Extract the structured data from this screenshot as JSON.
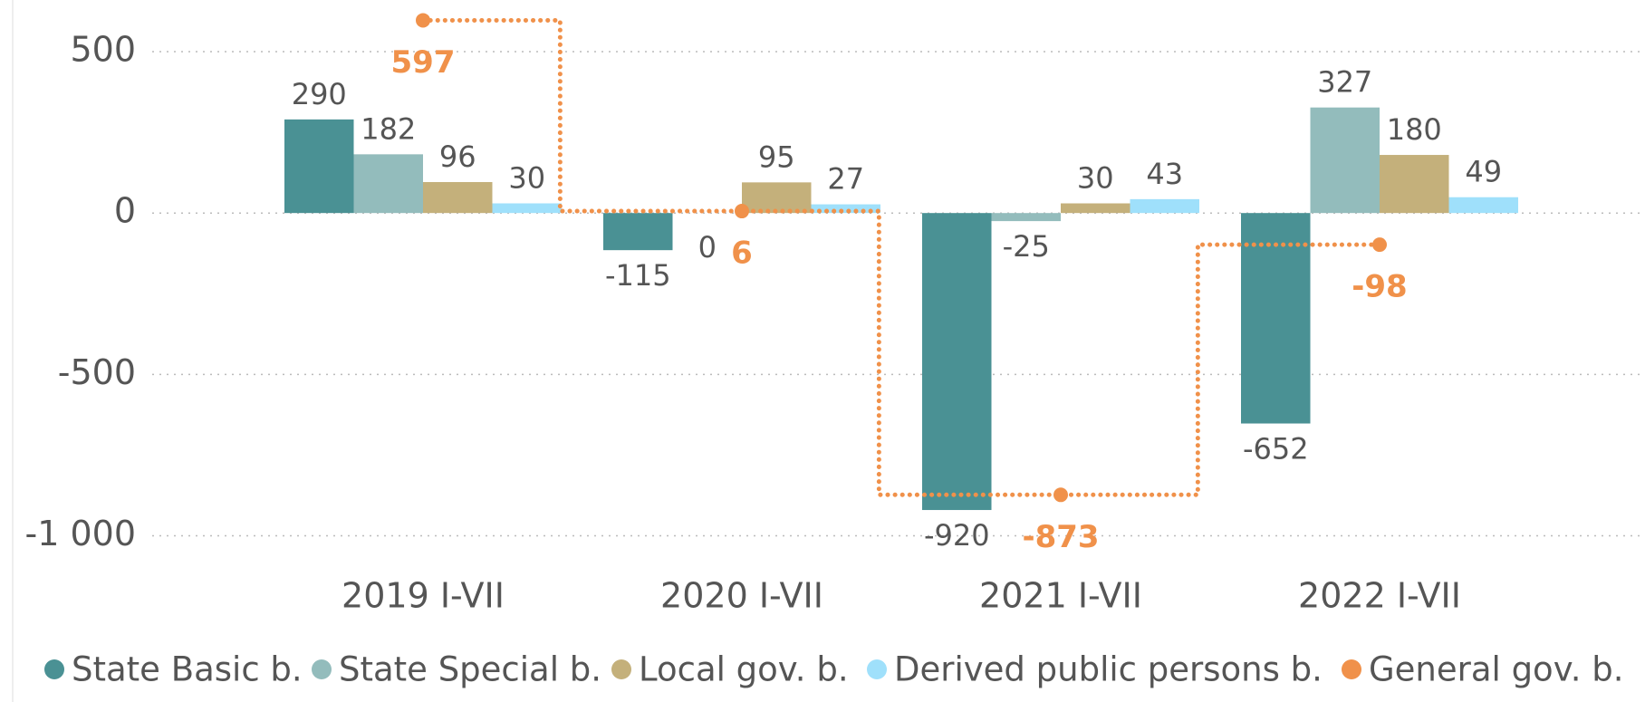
{
  "chart_data": {
    "type": "bar",
    "categories": [
      "2019 I-VII",
      "2020 I-VII",
      "2021 I-VII",
      "2022 I-VII"
    ],
    "series": [
      {
        "name": "State Basic b.",
        "color": "#4a9194",
        "values": [
          290,
          -115,
          -920,
          -652
        ]
      },
      {
        "name": "State Special b.",
        "color": "#93bcbc",
        "values": [
          182,
          0,
          -25,
          327
        ]
      },
      {
        "name": "Local gov. b.",
        "color": "#c4b07b",
        "values": [
          96,
          95,
          30,
          180
        ]
      },
      {
        "name": "Derived public persons b.",
        "color": "#9fe0fb",
        "values": [
          30,
          27,
          43,
          49
        ]
      },
      {
        "name": "General gov. b.",
        "color": "#f0914a",
        "type": "step",
        "values": [
          597,
          6,
          -873,
          -98
        ]
      }
    ],
    "ylim": [
      -1150,
      660
    ],
    "yticks": [
      {
        "value": -1000,
        "label": "-1 000"
      },
      -500,
      0,
      500
    ],
    "grid": true,
    "legend": "bottom"
  }
}
